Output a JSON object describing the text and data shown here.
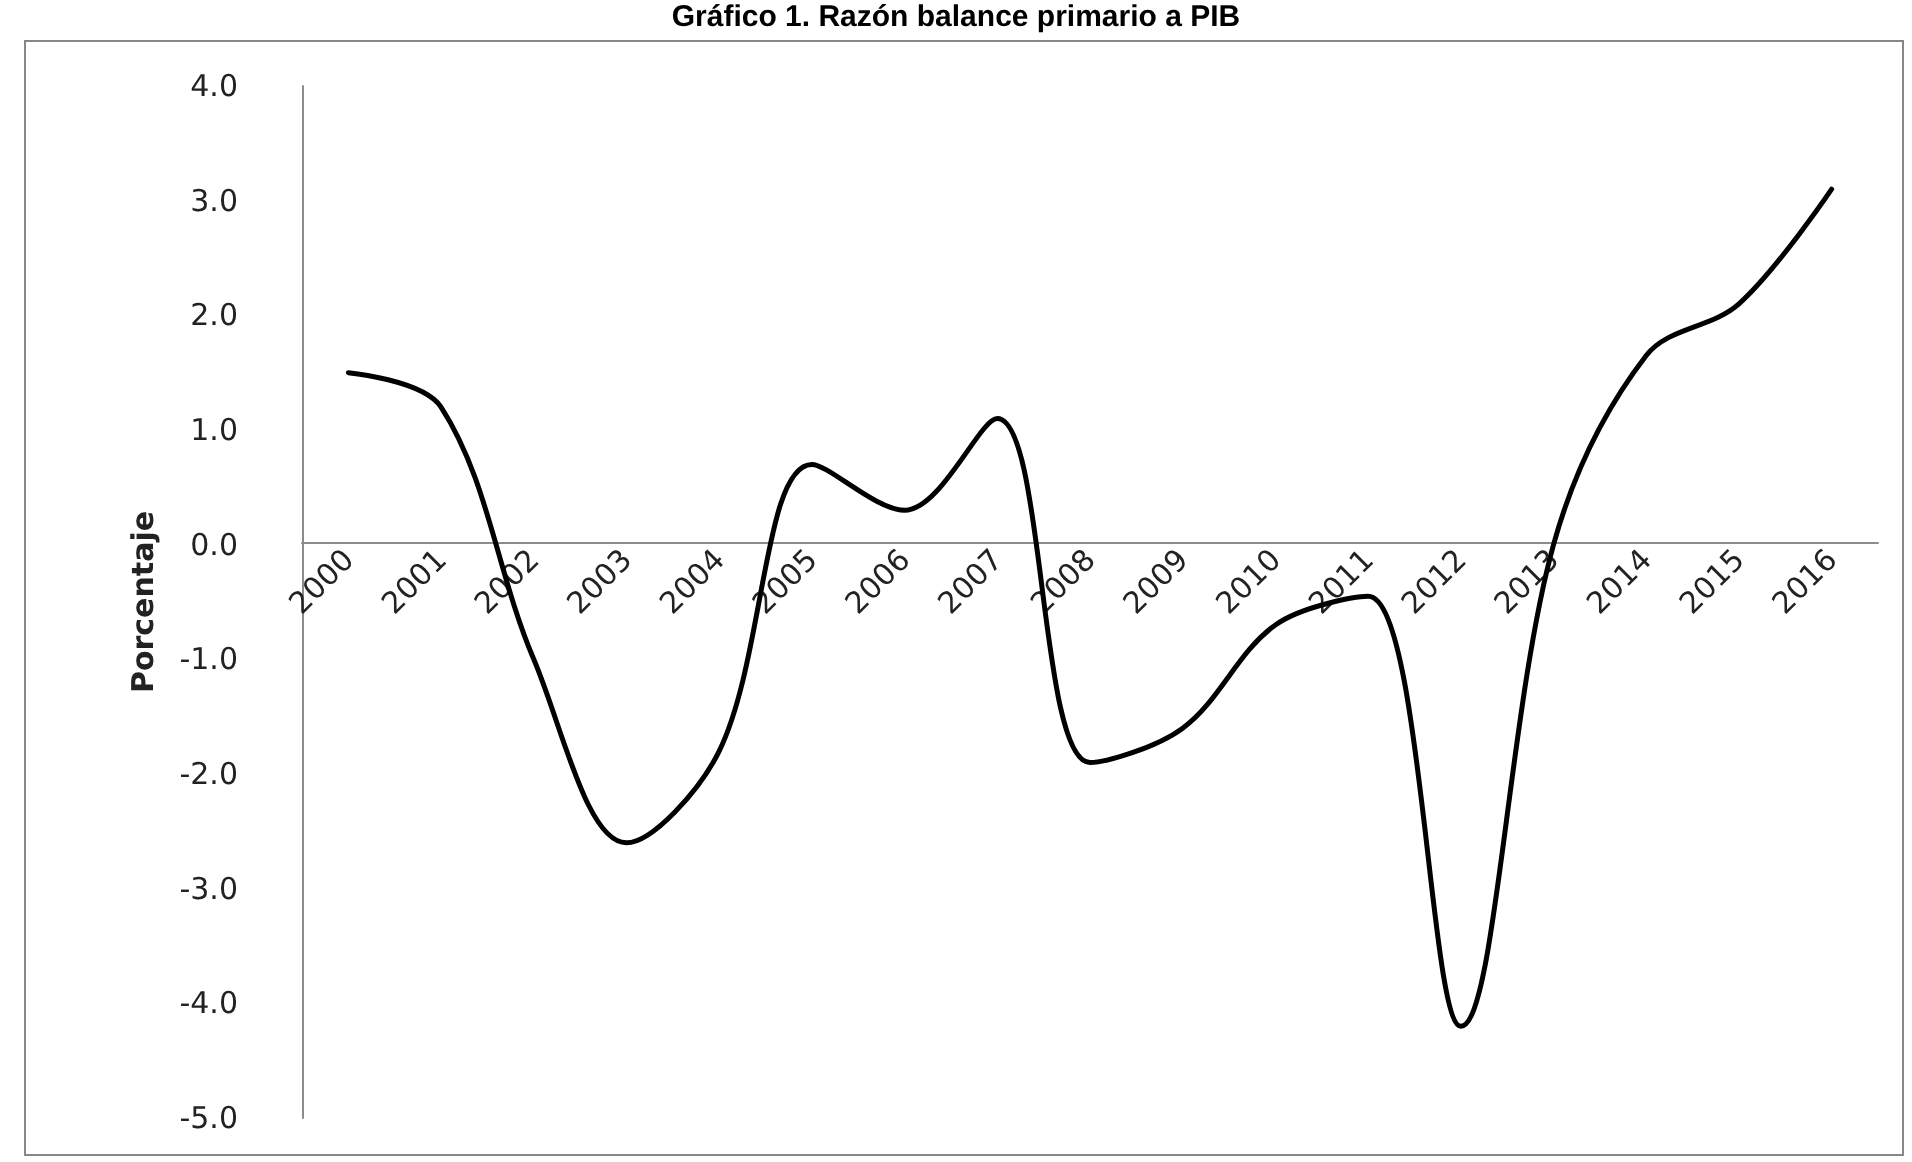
{
  "chart_data": {
    "type": "line",
    "title": "Gráfico 1. Razón balance primario a PIB",
    "ylabel": "Porcentaje",
    "categories": [
      "2000",
      "2001",
      "2002",
      "2003",
      "2004",
      "2005",
      "2006",
      "2007",
      "2008",
      "2009",
      "2010",
      "2011",
      "2012",
      "2013",
      "2014",
      "2015",
      "2016"
    ],
    "series": [
      {
        "color": "#000000",
        "values": [
          1.5,
          1.2,
          -1.0,
          -2.6,
          -1.8,
          0.7,
          0.3,
          1.1,
          -1.9,
          -1.6,
          -0.7,
          -0.45,
          -4.2,
          0.0,
          1.65,
          2.1,
          3.1
        ]
      }
    ],
    "ylim": [
      -5,
      4
    ],
    "yticks": [
      {
        "value": -5,
        "label": "-5.0"
      },
      {
        "value": -4,
        "label": "-4.0"
      },
      {
        "value": -3,
        "label": "-3.0"
      },
      {
        "value": -2,
        "label": "-2.0"
      },
      {
        "value": -1,
        "label": "-1.0"
      },
      {
        "value": 0,
        "label": "0.0"
      },
      {
        "value": 1,
        "label": "1.0"
      },
      {
        "value": 2,
        "label": "2.0"
      },
      {
        "value": 3,
        "label": "3.0"
      },
      {
        "value": 4,
        "label": "4.0"
      }
    ],
    "grid": false,
    "marker": "none",
    "line_style": "solid"
  }
}
